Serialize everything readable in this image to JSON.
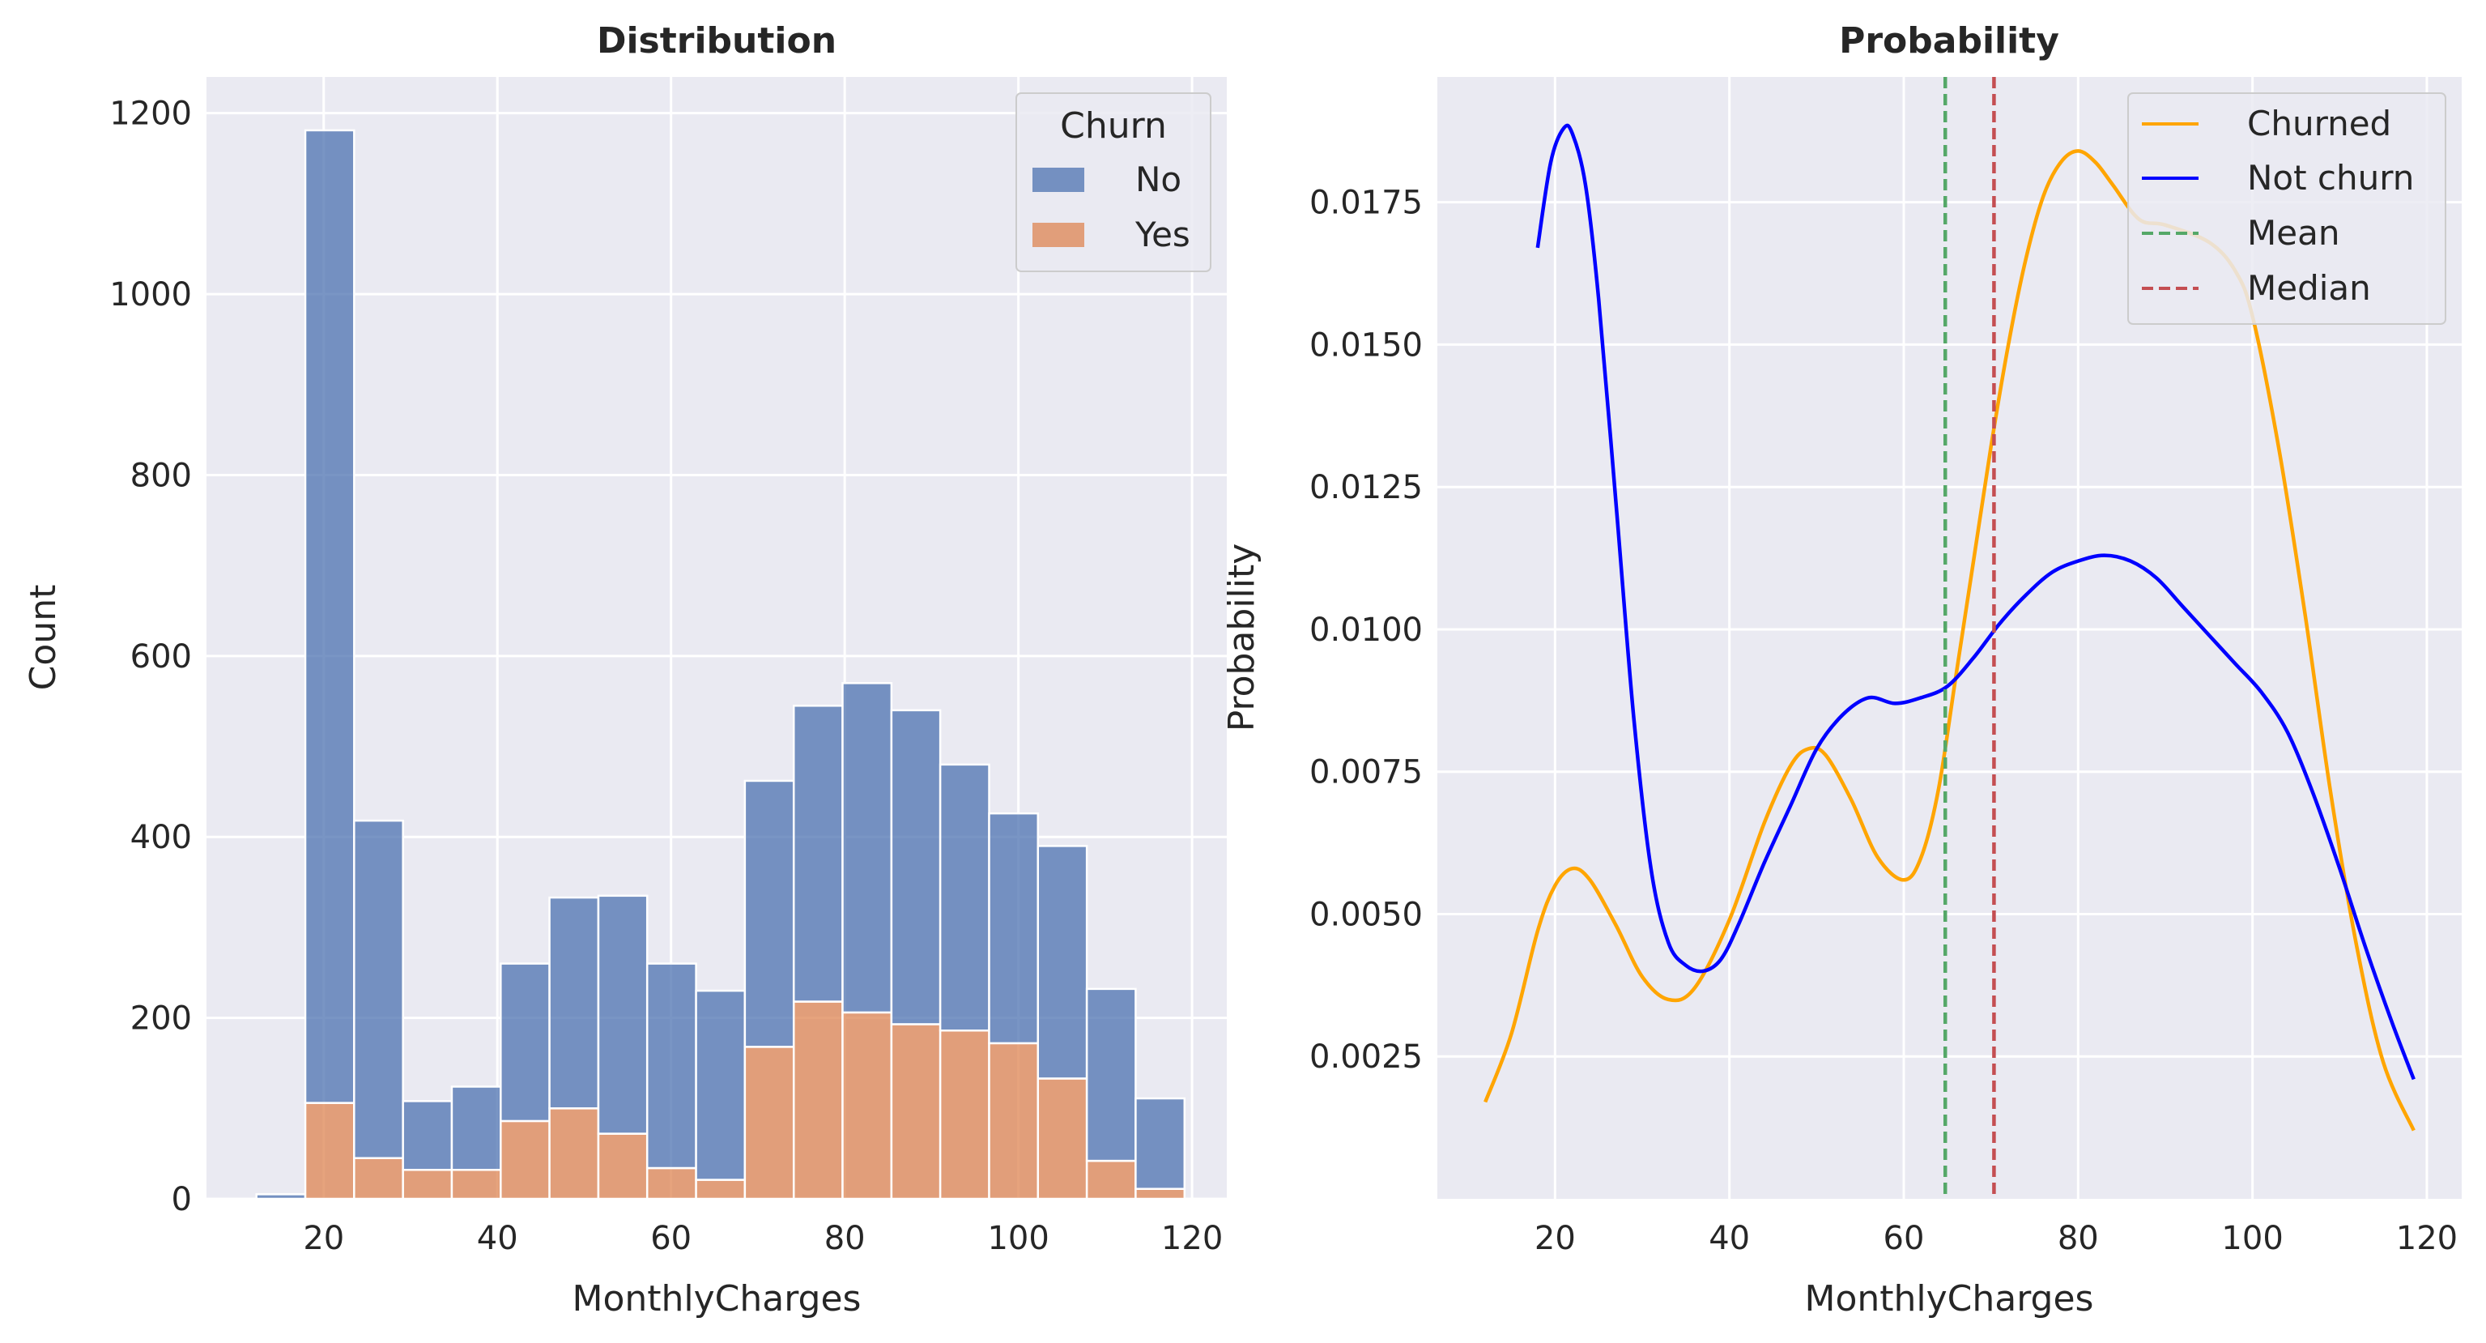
{
  "colors": {
    "panel_bg": "#eaeaf2",
    "grid": "#ffffff",
    "hist_no": "#4c72b0",
    "hist_yes": "#dd8452",
    "churned": "#ffa500",
    "not_churn": "#0000ff",
    "mean": "#55a868",
    "median": "#c44e52"
  },
  "chart_data": [
    {
      "type": "bar",
      "stacked": true,
      "title": "Distribution",
      "xlabel": "MonthlyCharges",
      "ylabel": "Count",
      "xlim": [
        6.5,
        124
      ],
      "ylim": [
        0,
        1240
      ],
      "xticks": [
        20,
        40,
        60,
        80,
        100,
        120
      ],
      "yticks": [
        0,
        200,
        400,
        600,
        800,
        1000,
        1200
      ],
      "grid": true,
      "legend": {
        "title": "Churn",
        "position": "top-right"
      },
      "bin_edges": [
        12.25,
        17.88,
        23.5,
        29.13,
        34.75,
        40.38,
        46.0,
        51.63,
        57.25,
        62.88,
        68.5,
        74.13,
        79.75,
        85.38,
        91.0,
        96.63,
        102.25,
        107.88,
        113.5,
        119.13
      ],
      "series": [
        {
          "name": "Yes",
          "values": [
            0,
            106,
            45,
            32,
            32,
            86,
            100,
            72,
            34,
            21,
            168,
            218,
            206,
            193,
            186,
            172,
            133,
            42,
            11
          ]
        },
        {
          "name": "No",
          "values": [
            5,
            1075,
            373,
            76,
            92,
            174,
            233,
            263,
            226,
            209,
            294,
            327,
            364,
            347,
            294,
            254,
            257,
            190,
            100
          ]
        }
      ]
    },
    {
      "type": "line",
      "title": "Probability",
      "xlabel": "MonthlyCharges",
      "ylabel": "Probability",
      "xlim": [
        6.5,
        124
      ],
      "ylim": [
        0,
        0.0197
      ],
      "xticks": [
        20,
        40,
        60,
        80,
        100,
        120
      ],
      "yticks": [
        0.0025,
        0.005,
        0.0075,
        0.01,
        0.0125,
        0.015,
        0.0175
      ],
      "ytick_labels": [
        "0.0025",
        "0.0050",
        "0.0075",
        "0.0100",
        "0.0125",
        "0.0150",
        "0.0175"
      ],
      "grid": true,
      "legend": {
        "position": "top-right"
      },
      "series": [
        {
          "name": "Churned",
          "x": [
            12,
            15,
            18,
            20,
            22,
            24,
            27,
            30,
            33,
            36,
            40,
            44,
            47,
            49,
            51,
            54,
            57,
            60,
            62,
            64,
            66,
            68,
            70,
            72,
            74,
            76,
            78,
            80,
            82,
            84,
            87,
            90,
            95,
            98,
            100,
            103,
            106,
            109,
            112,
            115,
            118.5
          ],
          "y": [
            0.0017,
            0.0029,
            0.0047,
            0.0055,
            0.0058,
            0.0056,
            0.0048,
            0.0039,
            0.0035,
            0.0037,
            0.0049,
            0.0066,
            0.0076,
            0.0079,
            0.0078,
            0.007,
            0.006,
            0.0056,
            0.006,
            0.0072,
            0.0092,
            0.0112,
            0.0132,
            0.015,
            0.0165,
            0.0176,
            0.0182,
            0.0184,
            0.0182,
            0.0178,
            0.0172,
            0.0171,
            0.0168,
            0.0163,
            0.0155,
            0.0132,
            0.0103,
            0.0071,
            0.0044,
            0.0024,
            0.0012
          ]
        },
        {
          "name": "Not churn",
          "x": [
            18,
            19.5,
            21,
            22,
            23.5,
            25,
            27,
            29,
            31,
            33,
            35,
            37,
            39,
            41,
            44,
            47,
            50,
            53,
            56,
            59,
            62,
            65,
            68,
            71,
            74,
            77,
            80,
            83,
            86,
            89,
            92,
            95,
            98,
            101,
            104,
            107,
            110,
            113,
            116,
            118.5
          ],
          "y": [
            0.0167,
            0.0182,
            0.0188,
            0.0187,
            0.0178,
            0.0158,
            0.0122,
            0.0085,
            0.0058,
            0.0045,
            0.0041,
            0.004,
            0.0042,
            0.0048,
            0.0059,
            0.0069,
            0.0079,
            0.0085,
            0.0088,
            0.0087,
            0.0088,
            0.009,
            0.0095,
            0.0101,
            0.0106,
            0.011,
            0.0112,
            0.0113,
            0.0112,
            0.0109,
            0.0104,
            0.0099,
            0.0094,
            0.0089,
            0.0082,
            0.0071,
            0.0058,
            0.0044,
            0.0031,
            0.0021
          ]
        },
        {
          "name": "Mean",
          "vline": 64.76,
          "style": "dashed"
        },
        {
          "name": "Median",
          "vline": 70.35,
          "style": "dashed"
        }
      ]
    }
  ]
}
